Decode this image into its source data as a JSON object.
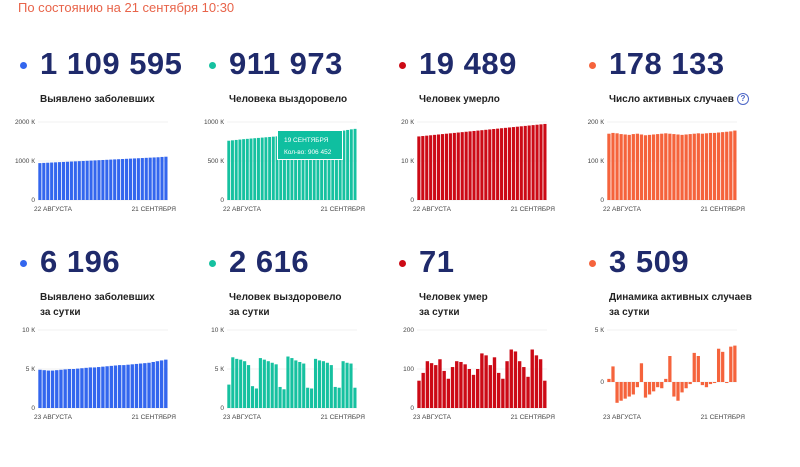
{
  "header": {
    "status_text": "По состоянию на 21 сентября 10:30"
  },
  "tooltip": {
    "date": "19 сентября",
    "count_label": "Кол-во: 906 452"
  },
  "cards": [
    {
      "id": "confirmed-total",
      "value": "1 109 595",
      "label_lines": [
        "Выявлено заболевших"
      ],
      "color": "#3366ee",
      "dot_color": "#3366ee",
      "chart_data": {
        "type": "bar",
        "y_ticks": [
          "2000 К",
          "1000 К",
          "0"
        ],
        "ylim": [
          0,
          2000
        ],
        "x_start": "22 АВГУСТА",
        "x_end": "21 СЕНТЯБРЯ",
        "values": [
          946,
          951,
          956,
          961,
          966,
          971,
          976,
          981,
          986,
          991,
          996,
          1001,
          1006,
          1011,
          1016,
          1021,
          1026,
          1031,
          1036,
          1041,
          1046,
          1051,
          1056,
          1061,
          1066,
          1071,
          1076,
          1081,
          1086,
          1091,
          1096,
          1104,
          1110
        ]
      }
    },
    {
      "id": "recovered-total",
      "value": "911 973",
      "label_lines": [
        "Человека выздоровело"
      ],
      "color": "#16c1a0",
      "dot_color": "#16c1a0",
      "chart_data": {
        "type": "bar",
        "y_ticks": [
          "1000 К",
          "500 К",
          "0"
        ],
        "ylim": [
          0,
          1000
        ],
        "x_start": "22 АВГУСТА",
        "x_end": "21 СЕНТЯБРЯ",
        "values": [
          760,
          765,
          770,
          775,
          780,
          784,
          788,
          792,
          796,
          800,
          804,
          808,
          812,
          816,
          820,
          824,
          828,
          832,
          836,
          840,
          844,
          848,
          852,
          856,
          860,
          864,
          868,
          872,
          876,
          880,
          884,
          890,
          898,
          906,
          912
        ]
      }
    },
    {
      "id": "deaths-total",
      "value": "19 489",
      "label_lines": [
        "Человек умерло"
      ],
      "color": "#cc0a16",
      "dot_color": "#cc0a16",
      "chart_data": {
        "type": "bar",
        "y_ticks": [
          "20 К",
          "10 К",
          "0"
        ],
        "ylim": [
          0,
          20
        ],
        "x_start": "22 АВГУСТА",
        "x_end": "21 СЕНТЯБРЯ",
        "values": [
          16.3,
          16.4,
          16.5,
          16.6,
          16.7,
          16.8,
          16.9,
          17.0,
          17.1,
          17.2,
          17.3,
          17.4,
          17.5,
          17.6,
          17.7,
          17.8,
          17.9,
          18.0,
          18.1,
          18.2,
          18.3,
          18.4,
          18.5,
          18.6,
          18.7,
          18.8,
          18.9,
          19.0,
          19.1,
          19.2,
          19.3,
          19.4,
          19.5
        ]
      }
    },
    {
      "id": "active-total",
      "value": "178 133",
      "label_lines": [
        "Число активных случаев"
      ],
      "has_info": true,
      "color": "#f5633c",
      "dot_color": "#f5633c",
      "chart_data": {
        "type": "bar",
        "y_ticks": [
          "200 К",
          "100 К",
          "0"
        ],
        "ylim": [
          0,
          200
        ],
        "x_start": "22 АВГУСТА",
        "x_end": "21 СЕНТЯБРЯ",
        "values": [
          170,
          172,
          171,
          169,
          168,
          167,
          169,
          170,
          168,
          166,
          167,
          168,
          169,
          170,
          171,
          170,
          169,
          168,
          167,
          168,
          169,
          170,
          171,
          170,
          171,
          172,
          172,
          173,
          174,
          175,
          176,
          178
        ]
      }
    },
    {
      "id": "confirmed-daily",
      "value": "6 196",
      "label_lines": [
        "Выявлено заболевших",
        "за сутки"
      ],
      "color": "#3366ee",
      "dot_color": "#3366ee",
      "chart_data": {
        "type": "bar",
        "y_ticks": [
          "10 К",
          "5 К",
          "0"
        ],
        "ylim": [
          0,
          10
        ],
        "x_start": "23 АВГУСТА",
        "x_end": "21 СЕНТЯБРЯ",
        "values": [
          4.9,
          4.85,
          4.8,
          4.8,
          4.85,
          4.9,
          4.95,
          5.0,
          5.0,
          5.05,
          5.1,
          5.15,
          5.2,
          5.2,
          5.25,
          5.3,
          5.35,
          5.4,
          5.45,
          5.5,
          5.5,
          5.55,
          5.6,
          5.65,
          5.7,
          5.75,
          5.8,
          5.9,
          6.0,
          6.1,
          6.2
        ]
      }
    },
    {
      "id": "recovered-daily",
      "value": "2 616",
      "label_lines": [
        "Человек выздоровело",
        "за сутки"
      ],
      "color": "#16c1a0",
      "dot_color": "#16c1a0",
      "chart_data": {
        "type": "bar",
        "y_ticks": [
          "10 К",
          "5 К",
          "0"
        ],
        "ylim": [
          0,
          10
        ],
        "x_start": "23 АВГУСТА",
        "x_end": "21 СЕНТЯБРЯ",
        "values": [
          3.0,
          6.5,
          6.3,
          6.2,
          6.0,
          5.5,
          2.8,
          2.5,
          6.4,
          6.2,
          6.0,
          5.8,
          5.6,
          2.7,
          2.4,
          6.6,
          6.4,
          6.1,
          5.9,
          5.7,
          2.6,
          2.5,
          6.3,
          6.1,
          6.0,
          5.8,
          5.5,
          2.7,
          2.6,
          6.0,
          5.8,
          5.7,
          2.6
        ]
      }
    },
    {
      "id": "deaths-daily",
      "value": "71",
      "label_lines": [
        "Человек умер",
        "за сутки"
      ],
      "color": "#cc0a16",
      "dot_color": "#cc0a16",
      "chart_data": {
        "type": "bar",
        "y_ticks": [
          "200",
          "100",
          "0"
        ],
        "ylim": [
          0,
          200
        ],
        "x_start": "23 АВГУСТА",
        "x_end": "21 СЕНТЯБРЯ",
        "values": [
          70,
          90,
          120,
          115,
          110,
          125,
          95,
          75,
          105,
          120,
          118,
          112,
          100,
          85,
          100,
          140,
          135,
          110,
          130,
          90,
          75,
          120,
          150,
          145,
          120,
          105,
          80,
          150,
          135,
          125,
          70
        ]
      }
    },
    {
      "id": "active-daily",
      "value": "3 509",
      "label_lines": [
        "Динамика активных случаев",
        "за сутки"
      ],
      "color": "#f5633c",
      "dot_color": "#f5633c",
      "chart_data": {
        "type": "bar",
        "y_ticks": [
          "5 К",
          "0"
        ],
        "ylim": [
          -2.5,
          5
        ],
        "x_start": "23 АВГУСТА",
        "x_end": "21 СЕНТЯБРЯ",
        "values": [
          0.3,
          1.5,
          -2.0,
          -1.8,
          -1.6,
          -1.4,
          -1.2,
          -0.5,
          1.8,
          -1.5,
          -1.2,
          -0.9,
          -0.5,
          -0.6,
          0.3,
          2.5,
          -1.4,
          -1.8,
          -1.0,
          -0.6,
          -0.2,
          2.8,
          2.5,
          -0.3,
          -0.5,
          -0.2,
          -0.1,
          3.2,
          2.9,
          -0.1,
          3.4,
          3.5
        ]
      }
    }
  ]
}
